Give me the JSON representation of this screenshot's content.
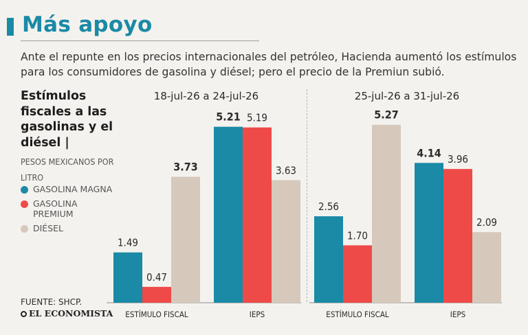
{
  "header": {
    "title": "Más apoyo",
    "subtitle": "Ante el repunte en los precios internacionales del petróleo, Hacienda aumentó los estímulos para los consumidores de gasolina y diésel;  pero el precio de la Premiun subió."
  },
  "side": {
    "title": "Estímulos fiscales a las gasolinas y el diésel |",
    "units": "PESOS MEXICANOS POR LITRO"
  },
  "legend": [
    {
      "label": "GASOLINA MAGNA",
      "color": "#1a8aa6"
    },
    {
      "label": "GASOLINA PREMIUM",
      "color": "#ee4a48"
    },
    {
      "label": "DIÉSEL",
      "color": "#d6c9bc"
    }
  ],
  "footer": {
    "source": "FUENTE: SHCP.",
    "brand": "EL ECONOMISTA"
  },
  "chart_data": {
    "type": "bar",
    "ylim": [
      0,
      6
    ],
    "grid": false,
    "legend_placement": "left",
    "series_names": [
      "GASOLINA MAGNA",
      "GASOLINA PREMIUM",
      "DIÉSEL"
    ],
    "colors": [
      "#1a8aa6",
      "#ee4a48",
      "#d6c9bc"
    ],
    "panels": [
      {
        "period": "18-jul-26 a 24-jul-26",
        "categories": [
          "ESTÍMULO FISCAL",
          "IEPS"
        ],
        "values": [
          [
            1.49,
            0.47,
            3.73
          ],
          [
            5.21,
            5.19,
            3.63
          ]
        ],
        "labels": [
          [
            "1.49",
            "0.47",
            "3.73"
          ],
          [
            "5.21",
            "5.19",
            "3.63"
          ]
        ],
        "bold": [
          [
            false,
            false,
            true
          ],
          [
            true,
            false,
            false
          ]
        ]
      },
      {
        "period": "25-jul-26 a 31-jul-26",
        "categories": [
          "ESTÍMULO FISCAL",
          "IEPS"
        ],
        "values": [
          [
            2.56,
            1.7,
            5.27
          ],
          [
            4.14,
            3.96,
            2.09
          ]
        ],
        "labels": [
          [
            "2.56",
            "1.70",
            "5.27"
          ],
          [
            "4.14",
            "3.96",
            "2.09"
          ]
        ],
        "bold": [
          [
            false,
            false,
            true
          ],
          [
            true,
            false,
            false
          ]
        ]
      }
    ]
  }
}
